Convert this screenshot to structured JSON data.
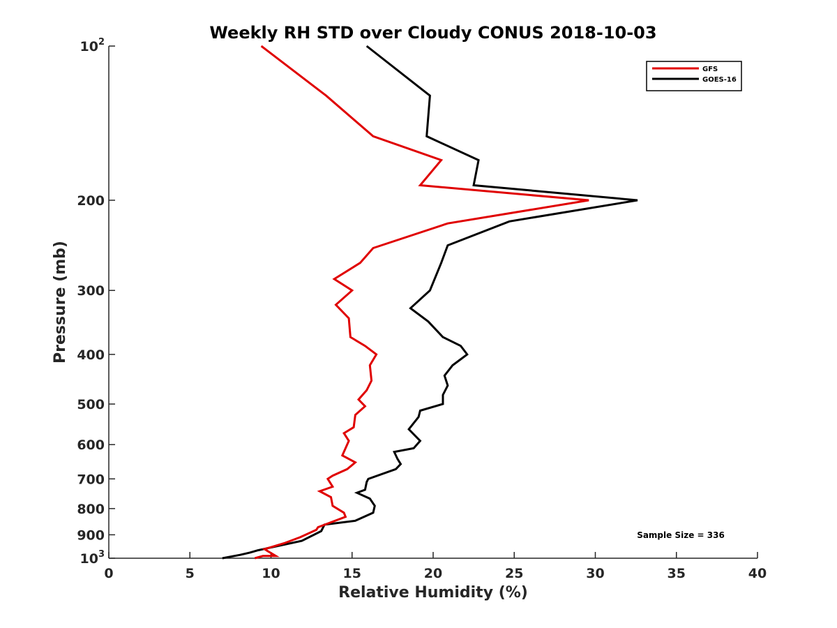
{
  "chart_data": {
    "type": "line",
    "title": "Weekly RH STD over Cloudy CONUS 2018-10-03",
    "xlabel": "Relative Humidity (%)",
    "ylabel": "Pressure (mb)",
    "xlim": [
      0,
      40
    ],
    "ylim": [
      100,
      1000
    ],
    "y_scale": "log",
    "y_reversed": true,
    "grid": false,
    "legend_position": "top-right",
    "x_ticks": [
      "0",
      "5",
      "10",
      "15",
      "20",
      "25",
      "30",
      "35",
      "40"
    ],
    "y_ticks": [
      {
        "value": 100,
        "base": "10",
        "exp": "2"
      },
      {
        "value": 200,
        "label": "200"
      },
      {
        "value": 300,
        "label": "300"
      },
      {
        "value": 400,
        "label": "400"
      },
      {
        "value": 500,
        "label": "500"
      },
      {
        "value": 600,
        "label": "600"
      },
      {
        "value": 700,
        "label": "700"
      },
      {
        "value": 800,
        "label": "800"
      },
      {
        "value": 900,
        "label": "900"
      },
      {
        "value": 1000,
        "base": "10",
        "exp": "3"
      }
    ],
    "annotation": "Sample Size = 336",
    "series": [
      {
        "name": "GFS",
        "color": "#e00000",
        "points": [
          [
            9.4,
            100
          ],
          [
            13.4,
            125
          ],
          [
            16.3,
            150
          ],
          [
            20.5,
            167
          ],
          [
            19.2,
            187
          ],
          [
            29.6,
            200
          ],
          [
            20.9,
            222
          ],
          [
            16.3,
            248
          ],
          [
            15.5,
            265
          ],
          [
            13.9,
            285
          ],
          [
            15.0,
            300
          ],
          [
            14.0,
            320
          ],
          [
            14.8,
            340
          ],
          [
            14.9,
            370
          ],
          [
            15.8,
            385
          ],
          [
            16.5,
            400
          ],
          [
            16.1,
            420
          ],
          [
            16.2,
            450
          ],
          [
            15.9,
            470
          ],
          [
            15.4,
            490
          ],
          [
            15.8,
            505
          ],
          [
            15.2,
            525
          ],
          [
            15.1,
            555
          ],
          [
            14.5,
            570
          ],
          [
            14.8,
            590
          ],
          [
            14.6,
            610
          ],
          [
            14.4,
            630
          ],
          [
            15.2,
            650
          ],
          [
            14.7,
            670
          ],
          [
            13.8,
            690
          ],
          [
            13.5,
            700
          ],
          [
            13.8,
            725
          ],
          [
            13.0,
            740
          ],
          [
            13.7,
            760
          ],
          [
            13.8,
            790
          ],
          [
            14.5,
            815
          ],
          [
            14.6,
            830
          ],
          [
            12.9,
            870
          ],
          [
            12.8,
            880
          ],
          [
            11.8,
            910
          ],
          [
            10.8,
            935
          ],
          [
            9.6,
            960
          ],
          [
            10.3,
            990
          ],
          [
            9.5,
            990
          ],
          [
            9.0,
            1000
          ]
        ]
      },
      {
        "name": "GOES-16",
        "color": "#000000",
        "points": [
          [
            15.9,
            100
          ],
          [
            19.8,
            125
          ],
          [
            19.6,
            150
          ],
          [
            22.8,
            167
          ],
          [
            22.5,
            187
          ],
          [
            32.6,
            200
          ],
          [
            24.7,
            220
          ],
          [
            20.9,
            245
          ],
          [
            20.5,
            265
          ],
          [
            19.8,
            300
          ],
          [
            18.6,
            325
          ],
          [
            19.7,
            345
          ],
          [
            20.6,
            370
          ],
          [
            21.7,
            385
          ],
          [
            22.1,
            400
          ],
          [
            21.2,
            420
          ],
          [
            20.7,
            440
          ],
          [
            20.9,
            460
          ],
          [
            20.6,
            480
          ],
          [
            20.6,
            500
          ],
          [
            19.2,
            515
          ],
          [
            19.1,
            530
          ],
          [
            18.5,
            560
          ],
          [
            19.2,
            590
          ],
          [
            18.8,
            610
          ],
          [
            17.6,
            620
          ],
          [
            17.8,
            640
          ],
          [
            18.0,
            655
          ],
          [
            17.7,
            670
          ],
          [
            16.0,
            700
          ],
          [
            15.9,
            710
          ],
          [
            15.8,
            735
          ],
          [
            15.3,
            745
          ],
          [
            16.1,
            765
          ],
          [
            16.4,
            790
          ],
          [
            16.3,
            815
          ],
          [
            15.2,
            845
          ],
          [
            13.3,
            860
          ],
          [
            13.1,
            885
          ],
          [
            11.9,
            925
          ],
          [
            9.2,
            965
          ],
          [
            8.7,
            975
          ],
          [
            8.1,
            985
          ],
          [
            7.0,
            1000
          ]
        ]
      }
    ]
  }
}
